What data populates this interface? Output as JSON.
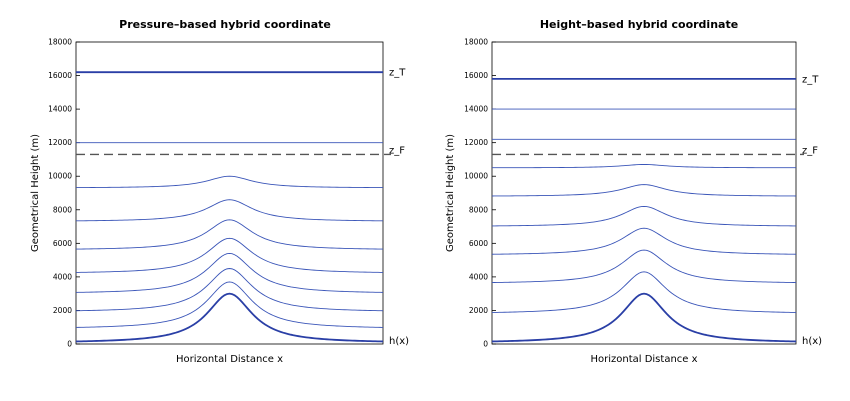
{
  "panels": [
    {
      "title": "Pressure–based hybrid coordinate",
      "ylabel": "Geometrical Height (m)",
      "xlabel": "Horizontal Distance x",
      "labels": {
        "top": "z_T",
        "flat": "z_F",
        "bottom": "h(x)"
      }
    },
    {
      "title": "Height–based hybrid coordinate",
      "ylabel": "Geometrical Height (m)",
      "xlabel": "Horizontal Distance x",
      "labels": {
        "top": "z_T",
        "flat": "z_F",
        "bottom": "h(x)"
      }
    }
  ],
  "chart_data": [
    {
      "type": "line",
      "title": "Pressure–based hybrid coordinate",
      "xlabel": "Horizontal Distance x",
      "ylabel": "Geometrical Height (m)",
      "ylim": [
        0,
        18000
      ],
      "yticks": [
        "0",
        "2000",
        "4000",
        "6000",
        "8000",
        "10000",
        "12000",
        "14000",
        "16000",
        "18000"
      ],
      "top_level": 16200,
      "flat_level": 11300,
      "terrain": {
        "peak": 3000,
        "base": 0
      },
      "levels": [
        {
          "base": 900,
          "peak": 3700
        },
        {
          "base": 1900,
          "peak": 4500
        },
        {
          "base": 3000,
          "peak": 5400
        },
        {
          "base": 4200,
          "peak": 6300
        },
        {
          "base": 5600,
          "peak": 7400
        },
        {
          "base": 7300,
          "peak": 8600
        },
        {
          "base": 9300,
          "peak": 10000
        },
        {
          "base": 12000,
          "peak": 12000
        }
      ]
    },
    {
      "type": "line",
      "title": "Height–based hybrid coordinate",
      "xlabel": "Horizontal Distance x",
      "ylabel": "Geometrical Height (m)",
      "ylim": [
        0,
        18000
      ],
      "yticks": [
        "0",
        "2000",
        "4000",
        "6000",
        "8000",
        "10000",
        "12000",
        "14000",
        "16000",
        "18000"
      ],
      "top_level": 15800,
      "flat_level": 11300,
      "terrain": {
        "peak": 3000,
        "base": 0
      },
      "levels": [
        {
          "base": 1800,
          "peak": 4300
        },
        {
          "base": 3600,
          "peak": 5600
        },
        {
          "base": 5300,
          "peak": 6900
        },
        {
          "base": 7000,
          "peak": 8200
        },
        {
          "base": 8800,
          "peak": 9500
        },
        {
          "base": 10500,
          "peak": 10700
        },
        {
          "base": 12200,
          "peak": 12200
        },
        {
          "base": 14000,
          "peak": 14000
        }
      ]
    }
  ]
}
